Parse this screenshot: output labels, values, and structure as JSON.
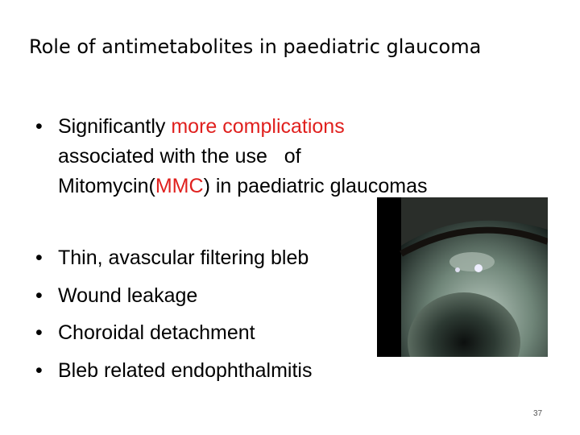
{
  "slide": {
    "title": "Role of antimetabolites in paediatric glaucoma",
    "bullet_1": {
      "lines": [
        [
          "Significantly ",
          "more complications"
        ],
        [
          "associated with the use   of"
        ],
        [
          "Mitomycin(",
          "MMC",
          ") in paediatric glaucomas"
        ]
      ]
    },
    "bullets": [
      "Thin, avascular filtering bleb",
      "Wound leakage",
      "Choroidal detachment",
      "Bleb related endophthalmitis"
    ],
    "page_number": "37"
  }
}
